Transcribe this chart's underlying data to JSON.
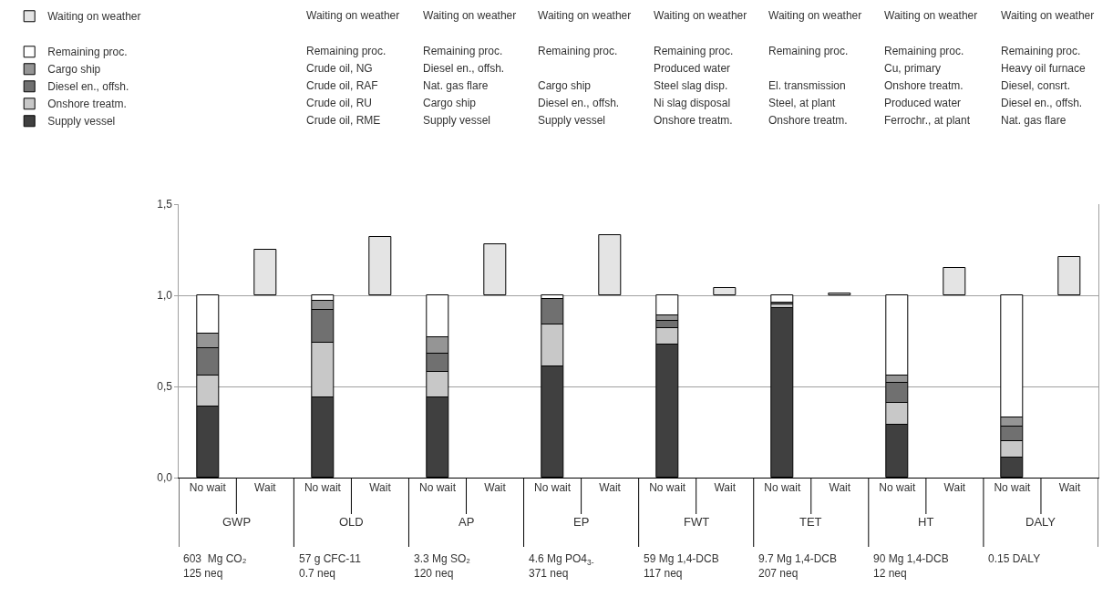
{
  "chart_data": {
    "type": "bar",
    "stacked": true,
    "categories": [
      "No wait",
      "Wait",
      "No wait",
      "Wait",
      "No wait",
      "Wait",
      "No wait",
      "Wait",
      "No wait",
      "Wait",
      "No wait",
      "Wait",
      "No wait",
      "Wait",
      "No wait",
      "Wait"
    ],
    "series": [
      {
        "name": "Supply vessel",
        "color": "#404040",
        "values": [
          0.39,
          null,
          0.44,
          null,
          0.44,
          null,
          0.61,
          null,
          0.73,
          null,
          0.93,
          null,
          0.29,
          null,
          0.11,
          null
        ]
      },
      {
        "name": "Onshore treatm.",
        "color": "#c8c8c8",
        "values": [
          0.17,
          null,
          0.3,
          null,
          0.14,
          null,
          0.23,
          null,
          0.09,
          null,
          0.02,
          null,
          0.12,
          null,
          0.09,
          null
        ]
      },
      {
        "name": "Diesel en., offsh.",
        "color": "#707070",
        "values": [
          0.15,
          null,
          0.18,
          null,
          0.1,
          null,
          0.14,
          null,
          0.04,
          null,
          0.01,
          null,
          0.11,
          null,
          0.08,
          null
        ]
      },
      {
        "name": "Cargo ship",
        "color": "#959595",
        "values": [
          0.08,
          null,
          0.05,
          null,
          0.09,
          null,
          null,
          null,
          0.03,
          null,
          null,
          null,
          0.04,
          null,
          0.05,
          null
        ]
      },
      {
        "name": "Remaining proc.",
        "color": "#ffffff",
        "values": [
          0.21,
          null,
          0.03,
          null,
          0.23,
          null,
          0.02,
          null,
          0.11,
          null,
          0.04,
          null,
          0.44,
          null,
          0.67,
          null
        ]
      },
      {
        "name": "Waiting on weather",
        "color": "#e4e4e4",
        "base": [
          null,
          1,
          null,
          1,
          null,
          1,
          null,
          1,
          null,
          1,
          null,
          1,
          null,
          1,
          null,
          1
        ],
        "values": [
          null,
          0.25,
          null,
          0.32,
          null,
          0.28,
          null,
          0.33,
          null,
          0.04,
          null,
          0.01,
          null,
          0.15,
          null,
          0.21
        ]
      }
    ],
    "ylim": [
      0,
      1.5
    ],
    "yticks": [
      {
        "value": 0,
        "label": "0,0"
      },
      {
        "value": 0.5,
        "label": "0,5"
      },
      {
        "value": 1,
        "label": "1,0"
      },
      {
        "value": 1.5,
        "label": "1,5"
      }
    ],
    "grid": "y",
    "legend": "top left",
    "annotations": [
      "GWP",
      "OLD",
      "AP",
      "EP",
      "FWT",
      "TET",
      "HT",
      "DALY",
      "603  Mg CO₂\n125 neq",
      "57 g CFC-11\n0.7 neq",
      "3.3 Mg SO₂\n120 neq",
      "4.6 Mg PO4$_{3-}$\n371 neq",
      "59 Mg 1,4-DCB\n117 neq",
      "9.7 Mg 1,4-DCB\n207 neq",
      "90 Mg 1,4-DCB\n12 neq",
      "0.15 DALY",
      "Waiting on weather\n\nRemaining proc.\nCrude oil, NG\nCrude oil, RAF\nCrude oil, RU\nCrude oil, RME",
      "Waiting on weather\n\nRemaining proc.\nDiesel en., offsh.\nNat. gas flare\nCargo ship\nSupply vessel",
      "Waiting on weather\n\nRemaining proc.\n\nCargo ship\nDiesel en., offsh.\nSupply vessel",
      "Waiting on weather\n\nRemaining proc.\nProduced water\nSteel slag disp.\nNi slag disposal\nOnshore treatm.",
      "Waiting on weather\n\nRemaining proc.\n\nEl. transmission\nSteel, at plant\nOnshore treatm.",
      "Waiting on weather\n\nRemaining proc.\nCu, primary\nOnshore treatm.\nProduced water\nFerrochr., at plant",
      "Waiting on weather\n\nRemaining proc.\nHeavy oil furnace\nDiesel, consrt.\nDiesel en., offsh.\nNat. gas flare"
    ]
  }
}
